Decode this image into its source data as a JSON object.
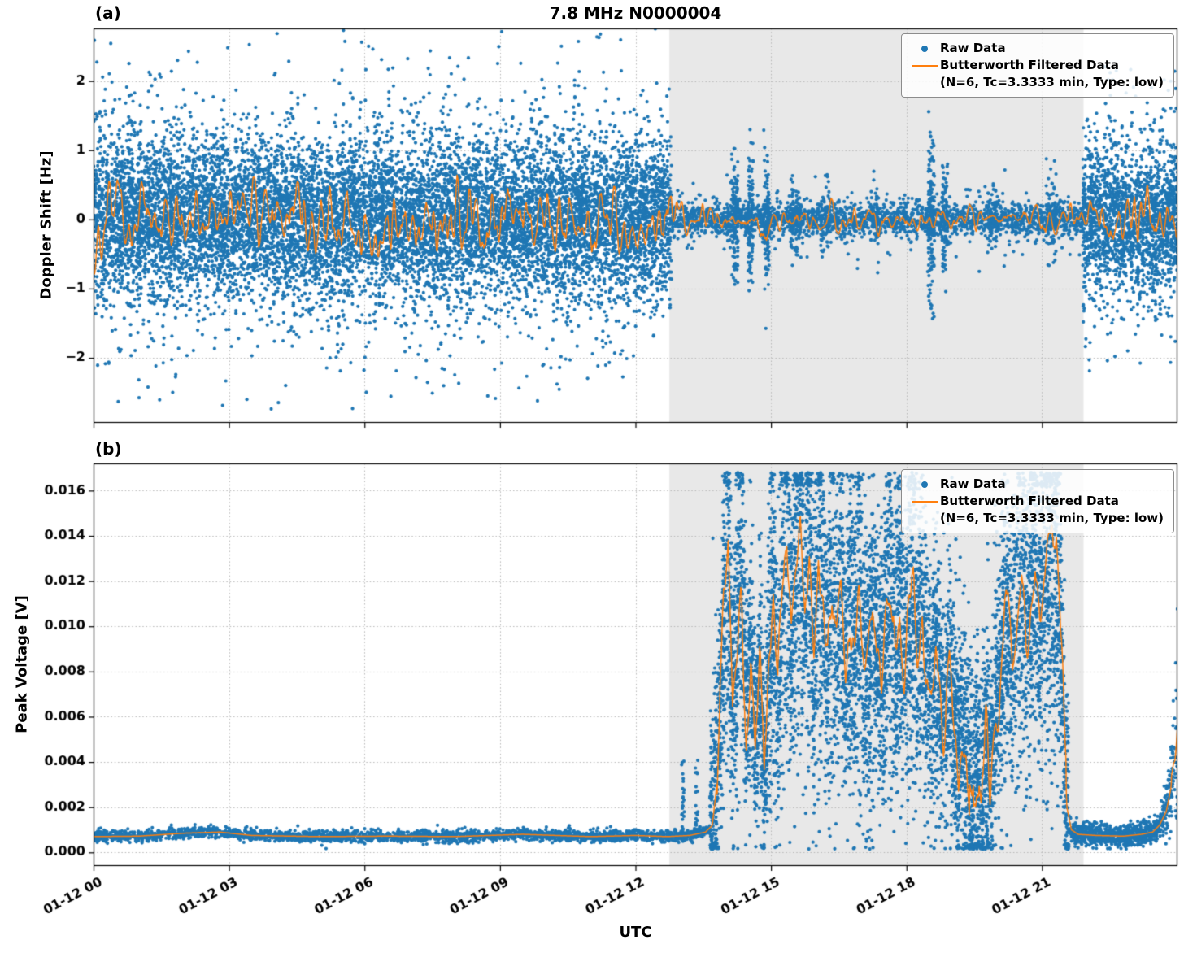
{
  "figure": {
    "title": "7.8 MHz N0000004",
    "xlabel": "UTC",
    "panel_a_tag": "(a)",
    "panel_b_tag": "(b)",
    "colors": {
      "raw": "#1f77b4",
      "filtered": "#ff7f0e",
      "shade": "#e8e8e8",
      "grid": "#b8b8b8",
      "frame": "#000000"
    },
    "legend": {
      "raw_label": "Raw Data",
      "filtered_label": "Butterworth Filtered Data",
      "filtered_sub": "(N=6, Tc=3.3333 min, Type: low)"
    }
  },
  "chart_data": [
    {
      "type": "scatter",
      "panel": "a",
      "title": "7.8 MHz N0000004",
      "ylabel": "Doppler Shift [Hz]",
      "x_range_hours": [
        0,
        24
      ],
      "x_axis_note": "time UTC from 01-12 00:00 to 01-13 00:00",
      "ylim": [
        -2.94,
        2.76
      ],
      "yticks": [
        2,
        1,
        0,
        -1,
        -2
      ],
      "ytick_labels": [
        "2",
        "1",
        "0",
        "−1",
        "−2"
      ],
      "xtick_hours": [
        0,
        3,
        6,
        9,
        12,
        15,
        18,
        21
      ],
      "xtick_labels": [
        "01-12 00",
        "01-12 03",
        "01-12 06",
        "01-12 09",
        "01-12 12",
        "01-12 15",
        "01-12 18",
        "01-12 21"
      ],
      "show_xtick_labels": false,
      "grid": true,
      "legend_position": "upper right",
      "shaded_region_hours": [
        12.75,
        21.92
      ],
      "series": [
        {
          "name": "Raw Data",
          "kind": "scatter",
          "color": "#1f77b4",
          "seed": 101,
          "segments": [
            {
              "t0": 0,
              "t1": 12.8,
              "n": 12000,
              "sigma": 0.55,
              "sigma2": 1.05,
              "mix": 0.17,
              "clip": 2.8
            },
            {
              "t0": 12.8,
              "t1": 21.9,
              "n": 2400,
              "sigma": 0.12,
              "sigma2": 0.28,
              "mix": 0.12,
              "clip": 1.6
            },
            {
              "t0": 21.9,
              "t1": 24,
              "n": 2000,
              "sigma": 0.5,
              "sigma2": 0.95,
              "mix": 0.2,
              "clip": 2.3
            }
          ],
          "bursts": [
            {
              "t": 14.2,
              "w": 0.07,
              "n": 130,
              "sigma": 0.42
            },
            {
              "t": 14.55,
              "w": 0.06,
              "n": 110,
              "sigma": 0.45
            },
            {
              "t": 14.9,
              "w": 0.06,
              "n": 110,
              "sigma": 0.42
            },
            {
              "t": 15.55,
              "w": 0.12,
              "n": 90,
              "sigma": 0.3
            },
            {
              "t": 16.2,
              "w": 0.1,
              "n": 70,
              "sigma": 0.25
            },
            {
              "t": 17.3,
              "w": 0.1,
              "n": 70,
              "sigma": 0.22
            },
            {
              "t": 18.55,
              "w": 0.07,
              "n": 150,
              "sigma": 0.62
            },
            {
              "t": 18.85,
              "w": 0.06,
              "n": 90,
              "sigma": 0.4
            },
            {
              "t": 19.9,
              "w": 0.1,
              "n": 60,
              "sigma": 0.25
            },
            {
              "t": 21.2,
              "w": 0.12,
              "n": 80,
              "sigma": 0.3
            }
          ]
        },
        {
          "name": "Butterworth Filtered Data (N=6, Tc=3.3333 min, Type: low)",
          "kind": "line",
          "color": "#ff7f0e",
          "seed": 202,
          "width": 1.5,
          "mean": 0,
          "amplitude_envelope": [
            [
              0,
              0.26
            ],
            [
              12.7,
              0.26
            ],
            [
              12.95,
              0.09
            ],
            [
              21.8,
              0.09
            ],
            [
              22.05,
              0.2
            ],
            [
              24,
              0.2
            ]
          ]
        }
      ]
    },
    {
      "type": "scatter",
      "panel": "b",
      "ylabel": "Peak Voltage [V]",
      "x_range_hours": [
        0,
        24
      ],
      "ylim": [
        -0.0006,
        0.0172
      ],
      "yticks": [
        0,
        0.002,
        0.004,
        0.006,
        0.008,
        0.01,
        0.012,
        0.014,
        0.016
      ],
      "ytick_labels": [
        "0.000",
        "0.002",
        "0.004",
        "0.006",
        "0.008",
        "0.010",
        "0.012",
        "0.014",
        "0.016"
      ],
      "xtick_hours": [
        0,
        3,
        6,
        9,
        12,
        15,
        18,
        21
      ],
      "xtick_labels": [
        "01-12 00",
        "01-12 03",
        "01-12 06",
        "01-12 09",
        "01-12 12",
        "01-12 15",
        "01-12 18",
        "01-12 21"
      ],
      "show_xtick_labels": true,
      "grid": true,
      "legend_position": "upper right",
      "shaded_region_hours": [
        12.75,
        21.92
      ],
      "series": [
        {
          "name": "Raw Data",
          "kind": "scatter",
          "color": "#1f77b4",
          "seed": 303,
          "segments": [
            {
              "t0": 0,
              "t1": 13.65,
              "n": 2600,
              "sigma": 0.00013
            },
            {
              "t0": 13.65,
              "t1": 21.6,
              "n": 8000,
              "sigma": 0.0024,
              "sigma2": 0.0042,
              "mix": 0.15
            },
            {
              "t0": 21.6,
              "t1": 24,
              "n": 900,
              "sigma": 0.00025
            }
          ],
          "bursts": [
            {
              "t": 13.05,
              "w": 0.03,
              "n": 25,
              "sigma": 0.0012
            },
            {
              "t": 13.35,
              "w": 0.03,
              "n": 20,
              "sigma": 0.001
            }
          ]
        },
        {
          "name": "Butterworth Filtered Data (N=6, Tc=3.3333 min, Type: low)",
          "kind": "line",
          "color": "#ff7f0e",
          "seed": 404,
          "width": 1.5,
          "jitter": 0.0008,
          "control_points": [
            [
              0,
              0.0007
            ],
            [
              1,
              0.00072
            ],
            [
              2,
              0.00085
            ],
            [
              2.8,
              0.0009
            ],
            [
              3.5,
              0.00075
            ],
            [
              5,
              0.0007
            ],
            [
              6.5,
              0.00072
            ],
            [
              8,
              0.0007
            ],
            [
              9.5,
              0.0008
            ],
            [
              11,
              0.0007
            ],
            [
              12,
              0.00075
            ],
            [
              12.7,
              0.0007
            ],
            [
              13.2,
              0.00075
            ],
            [
              13.55,
              0.0009
            ],
            [
              13.7,
              0.0012
            ],
            [
              13.8,
              0.003
            ],
            [
              13.9,
              0.0075
            ],
            [
              13.95,
              0.0115
            ],
            [
              14.05,
              0.0135
            ],
            [
              14.15,
              0.007
            ],
            [
              14.25,
              0.0105
            ],
            [
              14.35,
              0.0125
            ],
            [
              14.45,
              0.006
            ],
            [
              14.55,
              0.0095
            ],
            [
              14.65,
              0.0045
            ],
            [
              14.75,
              0.008
            ],
            [
              14.85,
              0.0035
            ],
            [
              14.95,
              0.0085
            ],
            [
              15.05,
              0.011
            ],
            [
              15.15,
              0.0065
            ],
            [
              15.25,
              0.0115
            ],
            [
              15.35,
              0.0135
            ],
            [
              15.45,
              0.009
            ],
            [
              15.55,
              0.0125
            ],
            [
              15.65,
              0.014
            ],
            [
              15.75,
              0.0105
            ],
            [
              15.85,
              0.0125
            ],
            [
              15.95,
              0.0085
            ],
            [
              16.05,
              0.013
            ],
            [
              16.15,
              0.0105
            ],
            [
              16.25,
              0.008
            ],
            [
              16.35,
              0.0115
            ],
            [
              16.45,
              0.0095
            ],
            [
              16.55,
              0.011
            ],
            [
              16.65,
              0.0085
            ],
            [
              16.75,
              0.0105
            ],
            [
              16.85,
              0.009
            ],
            [
              16.95,
              0.011
            ],
            [
              17.05,
              0.0095
            ],
            [
              17.15,
              0.008
            ],
            [
              17.25,
              0.0105
            ],
            [
              17.35,
              0.009
            ],
            [
              17.45,
              0.0075
            ],
            [
              17.55,
              0.01
            ],
            [
              17.65,
              0.0115
            ],
            [
              17.75,
              0.009
            ],
            [
              17.85,
              0.011
            ],
            [
              17.95,
              0.0085
            ],
            [
              18.05,
              0.0105
            ],
            [
              18.15,
              0.0115
            ],
            [
              18.25,
              0.009
            ],
            [
              18.35,
              0.0105
            ],
            [
              18.45,
              0.008
            ],
            [
              18.55,
              0.0065
            ],
            [
              18.65,
              0.009
            ],
            [
              18.75,
              0.007
            ],
            [
              18.85,
              0.0055
            ],
            [
              18.95,
              0.0075
            ],
            [
              19.05,
              0.006
            ],
            [
              19.15,
              0.0045
            ],
            [
              19.25,
              0.0055
            ],
            [
              19.35,
              0.0035
            ],
            [
              19.45,
              0.0025
            ],
            [
              19.55,
              0.004
            ],
            [
              19.65,
              0.0022
            ],
            [
              19.75,
              0.005
            ],
            [
              19.85,
              0.0032
            ],
            [
              19.95,
              0.006
            ],
            [
              20.05,
              0.0072
            ],
            [
              20.15,
              0.009
            ],
            [
              20.25,
              0.011
            ],
            [
              20.35,
              0.0085
            ],
            [
              20.45,
              0.0105
            ],
            [
              20.55,
              0.012
            ],
            [
              20.65,
              0.0095
            ],
            [
              20.75,
              0.0115
            ],
            [
              20.85,
              0.013
            ],
            [
              20.95,
              0.0105
            ],
            [
              21.05,
              0.012
            ],
            [
              21.15,
              0.013
            ],
            [
              21.25,
              0.0115
            ],
            [
              21.32,
              0.0135
            ],
            [
              21.4,
              0.0105
            ],
            [
              21.48,
              0.006
            ],
            [
              21.55,
              0.002
            ],
            [
              21.65,
              0.001
            ],
            [
              21.8,
              0.0008
            ],
            [
              22.2,
              0.00075
            ],
            [
              22.8,
              0.00072
            ],
            [
              23.2,
              0.0008
            ],
            [
              23.45,
              0.0009
            ],
            [
              23.6,
              0.0012
            ],
            [
              23.75,
              0.0018
            ],
            [
              23.85,
              0.0028
            ],
            [
              23.95,
              0.0045
            ],
            [
              24,
              0.006
            ]
          ]
        }
      ]
    }
  ]
}
